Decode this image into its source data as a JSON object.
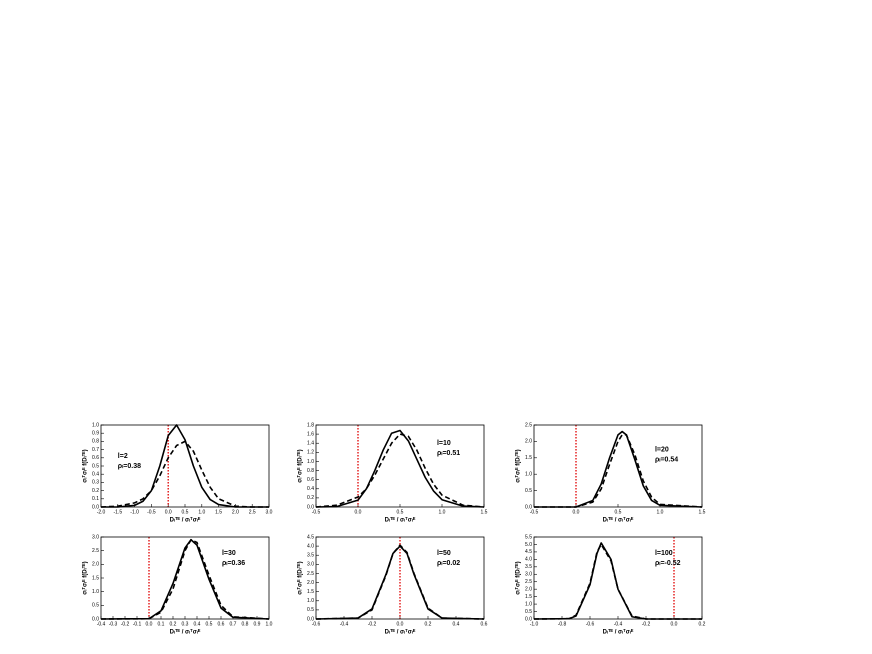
{
  "chart_data": [
    {
      "type": "line",
      "annotations": [
        "l=2",
        "ρₗ=0.38"
      ],
      "xlabel": "Dₗᵀᴱ / σₗᵀσₗᴱ",
      "ylabel": "σₗᵀσₗᴱ f(Dₗᵀᴱ)",
      "x": [
        -2,
        -1.5,
        -1,
        -0.75,
        -0.5,
        -0.25,
        0,
        0.25,
        0.5,
        0.75,
        1,
        1.25,
        1.5,
        2,
        2.5,
        3
      ],
      "series": [
        {
          "color": "#000000",
          "style": "solid",
          "values": [
            0,
            0,
            0.02,
            0.07,
            0.2,
            0.5,
            0.87,
            1.0,
            0.82,
            0.5,
            0.24,
            0.09,
            0.03,
            0,
            0,
            0
          ]
        },
        {
          "color": "#000000",
          "style": "dashed",
          "values": [
            0,
            0.01,
            0.05,
            0.1,
            0.2,
            0.38,
            0.6,
            0.75,
            0.8,
            0.68,
            0.45,
            0.24,
            0.1,
            0.01,
            0,
            0
          ]
        }
      ],
      "vline": 0,
      "vline_color": "#e00000",
      "xlim": [
        -2,
        3
      ],
      "xticks": [
        {
          "value": -2,
          "label": "-2.0"
        },
        -1.5,
        {
          "value": -1,
          "label": "-1.0"
        },
        -0.5,
        {
          "value": 0,
          "label": "0.0"
        },
        0.5,
        {
          "value": 1,
          "label": "1.0"
        },
        1.5,
        {
          "value": 2,
          "label": "2.0"
        },
        2.5,
        {
          "value": 3,
          "label": "3.0"
        }
      ],
      "ylim": [
        0,
        1
      ],
      "yticks": [
        {
          "value": 0,
          "label": "0.0"
        },
        0.1,
        0.2,
        0.3,
        0.4,
        0.5,
        0.6,
        0.7,
        0.8,
        0.9,
        {
          "value": 1,
          "label": "1.0"
        }
      ]
    },
    {
      "type": "line",
      "annotations": [
        "l=10",
        "ρₗ=0.51"
      ],
      "xlabel": "Dₗᵀᴱ / σₗᵀσₗᴱ",
      "ylabel": "σₗᵀσₗᴱ f(Dₗᵀᴱ)",
      "x": [
        -0.5,
        -0.25,
        0,
        0.1,
        0.2,
        0.3,
        0.4,
        0.5,
        0.6,
        0.7,
        0.8,
        0.9,
        1.0,
        1.25,
        1.5
      ],
      "series": [
        {
          "color": "#000000",
          "style": "solid",
          "values": [
            0,
            0.01,
            0.15,
            0.4,
            0.8,
            1.25,
            1.62,
            1.68,
            1.45,
            1.05,
            0.65,
            0.35,
            0.16,
            0.02,
            0
          ]
        },
        {
          "color": "#000000",
          "style": "dashed",
          "values": [
            0,
            0.04,
            0.22,
            0.4,
            0.7,
            1.05,
            1.4,
            1.6,
            1.55,
            1.25,
            0.85,
            0.5,
            0.26,
            0.04,
            0
          ]
        }
      ],
      "vline": 0,
      "vline_color": "#e00000",
      "xlim": [
        -0.5,
        1.5
      ],
      "xticks": [
        -0.5,
        {
          "value": 0,
          "label": "0.0"
        },
        0.5,
        {
          "value": 1,
          "label": "1.0"
        },
        1.5
      ],
      "ylim": [
        0,
        1.8
      ],
      "yticks": [
        {
          "value": 0,
          "label": "0.0"
        },
        0.2,
        0.4,
        0.6,
        0.8,
        {
          "value": 1,
          "label": "1.0"
        },
        1.2,
        1.4,
        1.6,
        1.8
      ]
    },
    {
      "type": "line",
      "annotations": [
        "l=20",
        "ρₗ=0.54"
      ],
      "xlabel": "Dₗᵀᴱ / σₗᵀσₗᴱ",
      "ylabel": "σₗᵀσₗᴱ f(Dₗᵀᴱ)",
      "x": [
        -0.5,
        0,
        0.2,
        0.3,
        0.4,
        0.5,
        0.55,
        0.6,
        0.7,
        0.8,
        0.9,
        1.0,
        1.5
      ],
      "series": [
        {
          "color": "#000000",
          "style": "solid",
          "values": [
            0,
            0,
            0.2,
            0.7,
            1.5,
            2.2,
            2.3,
            2.2,
            1.45,
            0.65,
            0.2,
            0.05,
            0
          ]
        },
        {
          "color": "#000000",
          "style": "dashed",
          "values": [
            0,
            0,
            0.15,
            0.55,
            1.3,
            2.0,
            2.2,
            2.2,
            1.6,
            0.8,
            0.3,
            0.08,
            0
          ]
        }
      ],
      "vline": 0,
      "vline_color": "#e00000",
      "xlim": [
        -0.5,
        1.5
      ],
      "xticks": [
        -0.5,
        {
          "value": 0,
          "label": "0.0"
        },
        0.5,
        {
          "value": 1,
          "label": "1.0"
        },
        1.5
      ],
      "ylim": [
        0,
        2.5
      ],
      "yticks": [
        {
          "value": 0,
          "label": "0.0"
        },
        0.5,
        {
          "value": 1,
          "label": "1.0"
        },
        1.5,
        {
          "value": 2,
          "label": "2.0"
        },
        2.5
      ]
    },
    {
      "type": "line",
      "annotations": [
        "l=30",
        "ρₗ=0.36"
      ],
      "xlabel": "Dₗᵀᴱ / σₗᵀσₗᴱ",
      "ylabel": "σₗᵀσₗᴱ f(Dₗᵀᴱ)",
      "x": [
        -0.4,
        0,
        0.1,
        0.2,
        0.3,
        0.35,
        0.4,
        0.5,
        0.6,
        0.7,
        1.0
      ],
      "series": [
        {
          "color": "#000000",
          "style": "solid",
          "values": [
            0,
            0.01,
            0.3,
            1.3,
            2.6,
            2.9,
            2.7,
            1.45,
            0.4,
            0.06,
            0
          ]
        },
        {
          "color": "#000000",
          "style": "dashed",
          "values": [
            0,
            0.01,
            0.25,
            1.1,
            2.5,
            2.9,
            2.8,
            1.6,
            0.5,
            0.08,
            0
          ]
        }
      ],
      "vline": 0,
      "vline_color": "#e00000",
      "xlim": [
        -0.4,
        1.0
      ],
      "xticks": [
        -0.4,
        -0.3,
        -0.2,
        -0.1,
        {
          "value": 0,
          "label": "0.0"
        },
        0.1,
        0.2,
        0.3,
        0.4,
        0.5,
        0.6,
        0.7,
        0.8,
        0.9,
        {
          "value": 1,
          "label": "1.0"
        }
      ],
      "ylim": [
        0,
        3
      ],
      "yticks": [
        {
          "value": 0,
          "label": "0.0"
        },
        0.5,
        {
          "value": 1,
          "label": "1.0"
        },
        1.5,
        {
          "value": 2,
          "label": "2.0"
        },
        2.5,
        {
          "value": 3,
          "label": "3.0"
        }
      ]
    },
    {
      "type": "line",
      "annotations": [
        "l=50",
        "ρₗ=0.02"
      ],
      "xlabel": "Dₗᵀᴱ / σₗᵀσₗᴱ",
      "ylabel": "σₗᵀσₗᴱ f(Dₗᵀᴱ)",
      "x": [
        -0.6,
        -0.3,
        -0.2,
        -0.1,
        -0.05,
        0,
        0.05,
        0.1,
        0.2,
        0.3,
        0.6
      ],
      "series": [
        {
          "color": "#000000",
          "style": "solid",
          "values": [
            0,
            0.05,
            0.55,
            2.45,
            3.6,
            4.0,
            3.6,
            2.45,
            0.55,
            0.05,
            0
          ]
        },
        {
          "color": "#000000",
          "style": "dashed",
          "values": [
            0,
            0.05,
            0.5,
            2.4,
            3.6,
            4.05,
            3.65,
            2.5,
            0.6,
            0.05,
            0
          ]
        }
      ],
      "vline": 0,
      "vline_color": "#e00000",
      "xlim": [
        -0.6,
        0.6
      ],
      "xticks": [
        -0.6,
        -0.4,
        -0.2,
        {
          "value": 0,
          "label": "0.0"
        },
        0.2,
        0.4,
        0.6
      ],
      "ylim": [
        0,
        4.5
      ],
      "yticks": [
        {
          "value": 0,
          "label": "0.0"
        },
        0.5,
        {
          "value": 1,
          "label": "1.0"
        },
        1.5,
        {
          "value": 2,
          "label": "2.0"
        },
        2.5,
        {
          "value": 3,
          "label": "3.0"
        },
        3.5,
        {
          "value": 4,
          "label": "4.0"
        },
        4.5
      ]
    },
    {
      "type": "line",
      "annotations": [
        "l=100",
        "ρₗ=-0.52"
      ],
      "xlabel": "Dₗᵀᴱ / σₗᵀσₗᴱ",
      "ylabel": "σₗᵀσₗᴱ f(Dₗᵀᴱ)",
      "x": [
        -1.0,
        -0.75,
        -0.7,
        -0.6,
        -0.55,
        -0.52,
        -0.45,
        -0.4,
        -0.3,
        -0.2,
        0.2
      ],
      "series": [
        {
          "color": "#000000",
          "style": "solid",
          "values": [
            0,
            0.02,
            0.2,
            2.3,
            4.4,
            5.1,
            4.0,
            2.0,
            0.15,
            0,
            0
          ]
        },
        {
          "color": "#000000",
          "style": "dashed",
          "values": [
            0,
            0.02,
            0.25,
            2.4,
            4.5,
            5.0,
            3.9,
            2.0,
            0.2,
            0,
            0
          ]
        }
      ],
      "vline": 0,
      "vline_color": "#e00000",
      "xlim": [
        -1.0,
        0.2
      ],
      "xticks": [
        {
          "value": -1,
          "label": "-1.0"
        },
        -0.8,
        -0.6,
        -0.4,
        -0.2,
        {
          "value": 0,
          "label": "0.0"
        },
        0.2
      ],
      "ylim": [
        0,
        5.5
      ],
      "yticks": [
        {
          "value": 0,
          "label": "0.0"
        },
        0.5,
        {
          "value": 1,
          "label": "1.0"
        },
        1.5,
        {
          "value": 2,
          "label": "2.0"
        },
        2.5,
        {
          "value": 3,
          "label": "3.0"
        },
        3.5,
        {
          "value": 4,
          "label": "4.0"
        },
        4.5,
        {
          "value": 5,
          "label": "5.0"
        },
        5.5
      ]
    }
  ]
}
